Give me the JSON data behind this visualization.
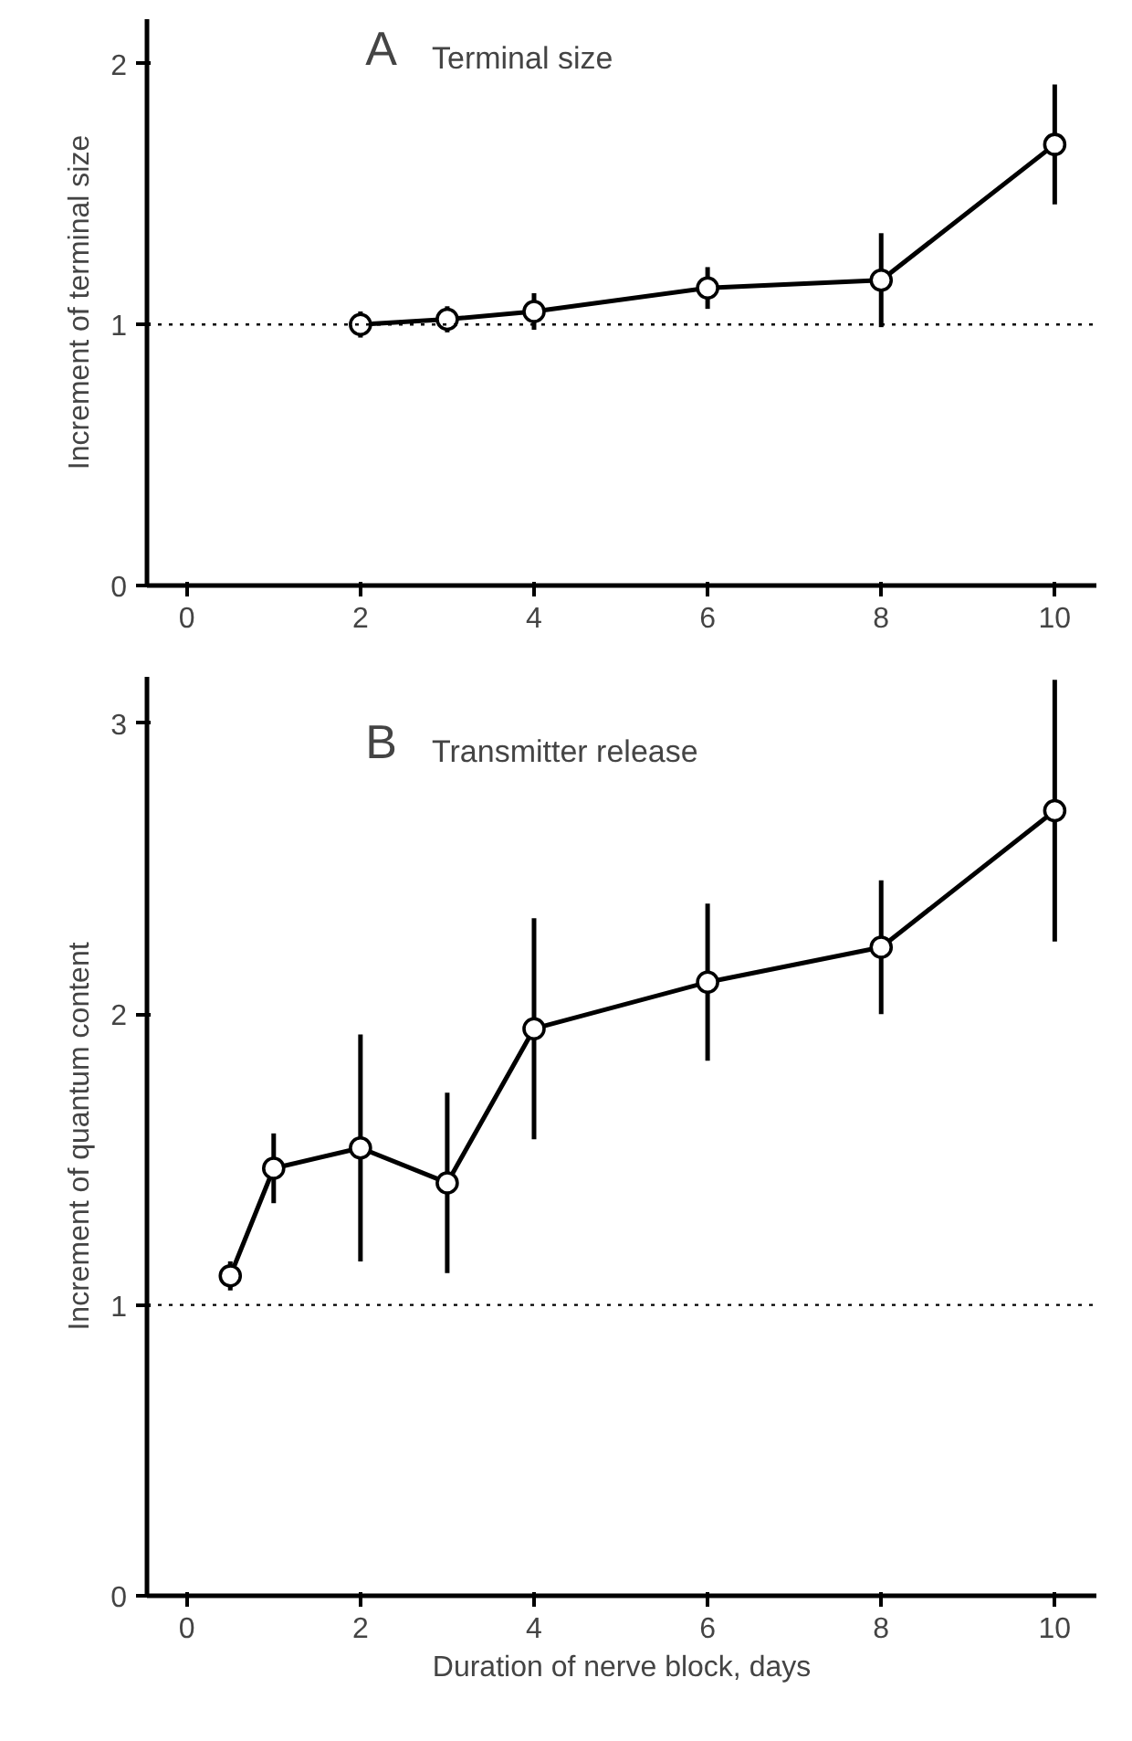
{
  "chart_data": [
    {
      "type": "line",
      "title": "Terminal size",
      "ylabel": "Increment of terminal size",
      "annotations": [
        "A"
      ],
      "x": [
        2,
        3,
        4,
        6,
        8,
        10
      ],
      "series": [
        {
          "color": "#000000",
          "values": [
            1.0,
            1.02,
            1.05,
            1.14,
            1.17,
            1.69
          ],
          "errors": [
            0.05,
            0.05,
            0.07,
            0.08,
            0.18,
            0.23
          ]
        }
      ],
      "xlim": [
        -0.46,
        10.48
      ],
      "ylim": [
        0,
        2.17
      ],
      "xticks": [
        0,
        2,
        4,
        6,
        8,
        10
      ],
      "yticks": [
        0,
        1,
        2
      ],
      "ref_lines": [
        {
          "axis": "y",
          "value": 1,
          "line_style": "dotted"
        }
      ],
      "grid": false,
      "marker": "circle",
      "line_style": "solid"
    },
    {
      "type": "line",
      "title": "Transmitter release",
      "xlabel": "Duration of nerve block, days",
      "ylabel": "Increment of quantum content",
      "annotations": [
        "B"
      ],
      "x": [
        0.5,
        1,
        2,
        3,
        4,
        6,
        8,
        10
      ],
      "series": [
        {
          "color": "#000000",
          "values": [
            1.1,
            1.47,
            1.54,
            1.42,
            1.95,
            2.11,
            2.23,
            2.7
          ],
          "errors": [
            0.05,
            0.12,
            0.39,
            0.31,
            0.38,
            0.27,
            0.23,
            0.45
          ]
        }
      ],
      "xlim": [
        -0.46,
        10.48
      ],
      "ylim": [
        0,
        3.16
      ],
      "xticks": [
        0,
        2,
        4,
        6,
        8,
        10
      ],
      "yticks": [
        0,
        1,
        2,
        3
      ],
      "ref_lines": [
        {
          "axis": "y",
          "value": 1,
          "line_style": "dotted"
        }
      ],
      "grid": false,
      "marker": "circle",
      "line_style": "solid"
    }
  ]
}
